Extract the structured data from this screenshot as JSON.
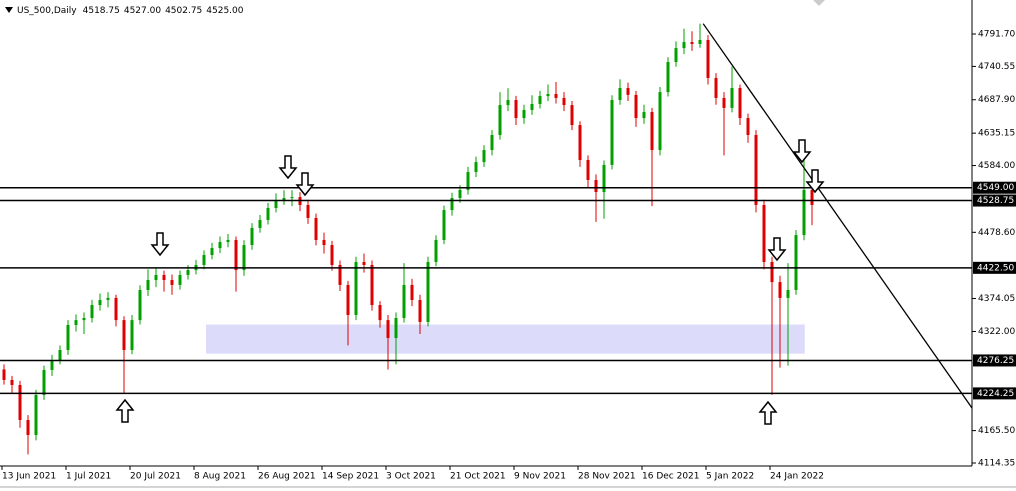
{
  "chart_data": {
    "type": "candlestick",
    "title": "US_500,Daily",
    "ohlc": [
      "4518.75",
      "4527.00",
      "4502.75",
      "4525.00"
    ],
    "up_color": "#00a000",
    "down_color": "#e00000",
    "ylim": [
      4109.6,
      4845.4
    ],
    "yticks": [
      {
        "value": 4791.7,
        "label": "4791.70"
      },
      {
        "value": 4740.55,
        "label": "4740.55"
      },
      {
        "value": 4687.9,
        "label": "4687.90"
      },
      {
        "value": 4635.15,
        "label": "4635.15"
      },
      {
        "value": 4584,
        "label": "4584.00"
      },
      {
        "value": 4478.6,
        "label": "4478.60"
      },
      {
        "value": 4374.05,
        "label": "4374.05"
      },
      {
        "value": 4322,
        "label": "4322.00"
      },
      {
        "value": 4165.5,
        "label": "4165.50"
      },
      {
        "value": 4114.35,
        "label": "4114.35"
      }
    ],
    "categories": [
      "13 Jun 2021",
      null,
      null,
      null,
      null,
      null,
      null,
      null,
      "1 Jul 2021",
      null,
      null,
      null,
      null,
      null,
      null,
      null,
      "20 Jul 2021",
      null,
      null,
      null,
      null,
      null,
      null,
      null,
      "8 Aug 2021",
      null,
      null,
      null,
      null,
      null,
      null,
      null,
      "26 Aug 2021",
      null,
      null,
      null,
      null,
      null,
      null,
      null,
      "14 Sep 2021",
      null,
      null,
      null,
      null,
      null,
      null,
      null,
      "3 Oct 2021",
      null,
      null,
      null,
      null,
      null,
      null,
      null,
      "21 Oct 2021",
      null,
      null,
      null,
      null,
      null,
      null,
      null,
      "9 Nov 2021",
      null,
      null,
      null,
      null,
      null,
      null,
      null,
      "28 Nov 2021",
      null,
      null,
      null,
      null,
      null,
      null,
      null,
      "16 Dec 2021",
      null,
      null,
      null,
      null,
      null,
      null,
      null,
      "5 Jan 2022",
      null,
      null,
      null,
      null,
      null,
      null,
      null,
      "24 Jan 2022",
      null,
      null,
      null,
      null,
      null
    ],
    "open": [
      4262,
      4245.5,
      4237.5,
      4182.25,
      4158.5,
      4221.75,
      4261.25,
      4277,
      4292.75,
      4332.25,
      4340,
      4343.25,
      4363.75,
      4371.75,
      4375,
      4340,
      4292.75,
      4340,
      4387.5,
      4403.25,
      4411.25,
      4403.25,
      4395.5,
      4411.25,
      4419,
      4427,
      4442.75,
      4453.75,
      4463.25,
      4466.5,
      4419,
      4458.5,
      4485.5,
      4498,
      4517,
      4529.5,
      4532.75,
      4534.25,
      4521.75,
      4501.25,
      4466.5,
      4458.5,
      4427,
      4395.5,
      4348,
      4431.75,
      4427,
      4363.75,
      4340,
      4311.75,
      4343.25,
      4395.5,
      4371.75,
      4337,
      4431.75,
      4466.5,
      4513.75,
      4532.75,
      4545.5,
      4573.75,
      4589.5,
      4608.5,
      4632.25,
      4679.5,
      4687.5,
      4659,
      4671.75,
      4681.25,
      4693.75,
      4697,
      4690.75,
      4679.5,
      4648,
      4592.75,
      4561.25,
      4542.25,
      4585,
      4687.5,
      4706.5,
      4695.5,
      4659,
      4668.5,
      4608.5,
      4700,
      4747.5,
      4769.5,
      4779,
      4776,
      4782.25,
      4722.25,
      4690.75,
      4675,
      4706.5,
      4659,
      4632.25,
      4521.75,
      4431.75,
      4400,
      4375,
      4387.5,
      4474.25,
      4545.5
    ],
    "high": [
      4270,
      4252,
      4244,
      4190,
      4230,
      4268,
      4285,
      4300,
      4340,
      4349,
      4352,
      4372,
      4382,
      4384,
      4380,
      4346,
      4348,
      4395,
      4420,
      4422,
      4418,
      4412,
      4418,
      4427,
      4435,
      4450,
      4462,
      4472,
      4476,
      4472,
      4466,
      4493,
      4506,
      4525,
      4540,
      4545,
      4545,
      4542,
      4530,
      4508,
      4478,
      4465,
      4434,
      4402,
      4440,
      4445,
      4434,
      4370,
      4348,
      4352,
      4430,
      4405,
      4380,
      4440,
      4474,
      4521,
      4541,
      4553,
      4582,
      4598,
      4616,
      4640,
      4700,
      4706,
      4694,
      4680,
      4695,
      4702,
      4712,
      4716,
      4700,
      4686,
      4654,
      4600,
      4570,
      4592,
      4695,
      4720,
      4715,
      4702,
      4680,
      4675,
      4708,
      4755,
      4780,
      4800,
      4796,
      4808,
      4790,
      4730,
      4700,
      4740,
      4712,
      4666,
      4640,
      4530,
      4440,
      4410,
      4430,
      4482,
      4595,
      4552
    ],
    "low": [
      4238,
      4225,
      4170,
      4128,
      4150,
      4214,
      4252,
      4270,
      4285,
      4322,
      4318,
      4336,
      4355,
      4360,
      4330,
      4225,
      4286,
      4333,
      4378,
      4392,
      4385,
      4380,
      4388,
      4404,
      4412,
      4420,
      4436,
      4446,
      4455,
      4385,
      4410,
      4451,
      4478,
      4491,
      4510,
      4522,
      4520,
      4512,
      4492,
      4458,
      4445,
      4418,
      4386,
      4300,
      4340,
      4415,
      4355,
      4328,
      4262,
      4270,
      4336,
      4362,
      4318,
      4330,
      4425,
      4460,
      4505,
      4525,
      4538,
      4566,
      4582,
      4600,
      4625,
      4670,
      4648,
      4650,
      4664,
      4674,
      4686,
      4682,
      4670,
      4640,
      4582,
      4550,
      4495,
      4500,
      4578,
      4680,
      4686,
      4645,
      4650,
      4520,
      4600,
      4693,
      4740,
      4760,
      4765,
      4770,
      4712,
      4680,
      4600,
      4668,
      4648,
      4620,
      4510,
      4420,
      4222,
      4265,
      4268,
      4380,
      4466,
      4490
    ],
    "close": [
      4245.5,
      4237.5,
      4182.25,
      4158.5,
      4221.75,
      4261.25,
      4277,
      4292.75,
      4332.25,
      4340,
      4343.25,
      4363.75,
      4371.75,
      4375,
      4340,
      4292.75,
      4340,
      4387.5,
      4403.25,
      4411.25,
      4403.25,
      4395.5,
      4411.25,
      4419,
      4427,
      4442.75,
      4453.75,
      4463.25,
      4466.5,
      4419,
      4458.5,
      4485.5,
      4498,
      4517,
      4529.5,
      4532.75,
      4534.25,
      4521.75,
      4501.25,
      4466.5,
      4458.5,
      4427,
      4395.5,
      4348,
      4431.75,
      4427,
      4363.75,
      4340,
      4311.75,
      4343.25,
      4395.5,
      4371.75,
      4337,
      4431.75,
      4466.5,
      4513.75,
      4532.75,
      4545.5,
      4573.75,
      4589.5,
      4608.5,
      4632.25,
      4679.5,
      4687.5,
      4659,
      4671.75,
      4681.25,
      4693.75,
      4697,
      4690.75,
      4679.5,
      4648,
      4592.75,
      4561.25,
      4542.25,
      4585,
      4687.5,
      4706.5,
      4695.5,
      4659,
      4668.5,
      4608.5,
      4700,
      4747.5,
      4769.5,
      4779,
      4776,
      4782.25,
      4722.25,
      4690.75,
      4675,
      4706.5,
      4659,
      4632.25,
      4521.75,
      4431.75,
      4400,
      4375,
      4387.5,
      4474.25,
      4545.5,
      4521.75
    ],
    "levels": [
      {
        "value": 4549,
        "label": "4549.00"
      },
      {
        "value": 4528.75,
        "label": "4528.75"
      },
      {
        "value": 4422.5,
        "label": "4422.50"
      },
      {
        "value": 4276.25,
        "label": "4276.25"
      },
      {
        "value": 4224.25,
        "label": "4224.25"
      }
    ],
    "zone": {
      "from": 25.25,
      "to": 100.1,
      "low": 4287,
      "high": 4333,
      "color": "#dcdcfa"
    },
    "trendline": {
      "x": [
        87.4,
        121
      ],
      "y": [
        4808,
        4201.2
      ]
    }
  }
}
